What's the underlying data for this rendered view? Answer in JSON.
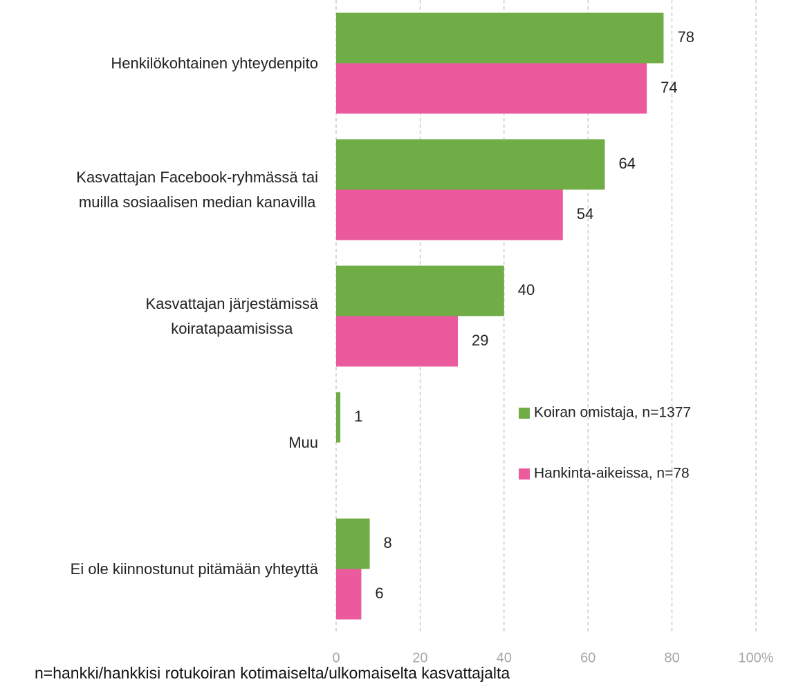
{
  "chart_data": {
    "type": "hbar",
    "categories": [
      "Henkilökohtainen yhteydenpito",
      "Kasvattajan Facebook-ryhmässä tai\nmuilla sosiaalisen median kanavilla",
      "Kasvattajan järjestämissä\nkoiratapaamisissa",
      "Muu",
      "Ei ole kiinnostunut pitämään yhteyttä"
    ],
    "series": [
      {
        "name": "Koiran omistaja, n=1377",
        "color": "#70ad47",
        "values": [
          78,
          64,
          40,
          1,
          8
        ]
      },
      {
        "name": "Hankinta-aikeissa, n=78",
        "color": "#ea5a9d",
        "values": [
          74,
          54,
          29,
          null,
          6
        ]
      }
    ],
    "xlim": [
      0,
      100
    ],
    "xticks": [
      0,
      20,
      40,
      60,
      80,
      {
        "value": 100,
        "label": "100%"
      }
    ],
    "x_label": "n=hankki/hankkisi rotukoiran kotimaiselta/ulkomaiselta kasvattajalta",
    "grid": true
  }
}
